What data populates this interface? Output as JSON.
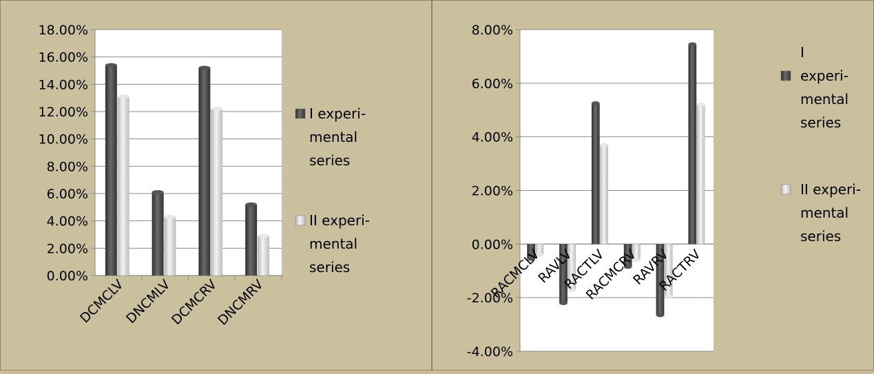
{
  "chart_data": [
    {
      "type": "bar",
      "categories": [
        "DCMCLV",
        "DNCMLV",
        "DCMCRV",
        "DNCMRV"
      ],
      "series": [
        {
          "name": "I experi-mental series",
          "values": [
            15.4,
            6.1,
            15.2,
            5.2
          ]
        },
        {
          "name": "II experi-mental series",
          "values": [
            13.1,
            4.3,
            12.2,
            2.9
          ]
        }
      ],
      "ylim": [
        0,
        18
      ],
      "yticks": [
        "0.00%",
        "2.00%",
        "4.00%",
        "6.00%",
        "8.00%",
        "10.00%",
        "12.00%",
        "14.00%",
        "16.00%",
        "18.00%"
      ],
      "legend": {
        "position": "right",
        "entries": [
          {
            "lines": [
              "I experi-",
              "mental",
              "series"
            ]
          },
          {
            "lines": [
              "II experi-",
              "mental",
              "series"
            ]
          }
        ]
      },
      "grid": true
    },
    {
      "type": "bar",
      "categories": [
        "RACMCLV",
        "RAVLV",
        "RACTLV",
        "RACMCRV",
        "RAVRV",
        "RACTRV"
      ],
      "series": [
        {
          "name": "I experi-mental series",
          "values": [
            -0.55,
            -2.2,
            5.25,
            -0.85,
            -2.65,
            7.45
          ]
        },
        {
          "name": "II experi-mental series",
          "values": [
            -0.4,
            -1.7,
            3.7,
            -0.6,
            -1.95,
            5.2
          ]
        }
      ],
      "ylim": [
        -4,
        8
      ],
      "yticks": [
        "-4.00%",
        "-2.00%",
        "0.00%",
        "2.00%",
        "4.00%",
        "6.00%",
        "8.00%"
      ],
      "legend": {
        "position": "right",
        "entries": [
          {
            "lines": [
              "I",
              "experi-",
              "mental",
              "series"
            ]
          },
          {
            "lines": [
              "II experi-",
              "mental",
              "series"
            ]
          }
        ]
      },
      "grid": true
    }
  ],
  "colors": {
    "series1": "#4a4a4a",
    "series2": "#d9d9d9",
    "panel_bg": "#cbc09d",
    "plot_bg": "#ffffff"
  }
}
